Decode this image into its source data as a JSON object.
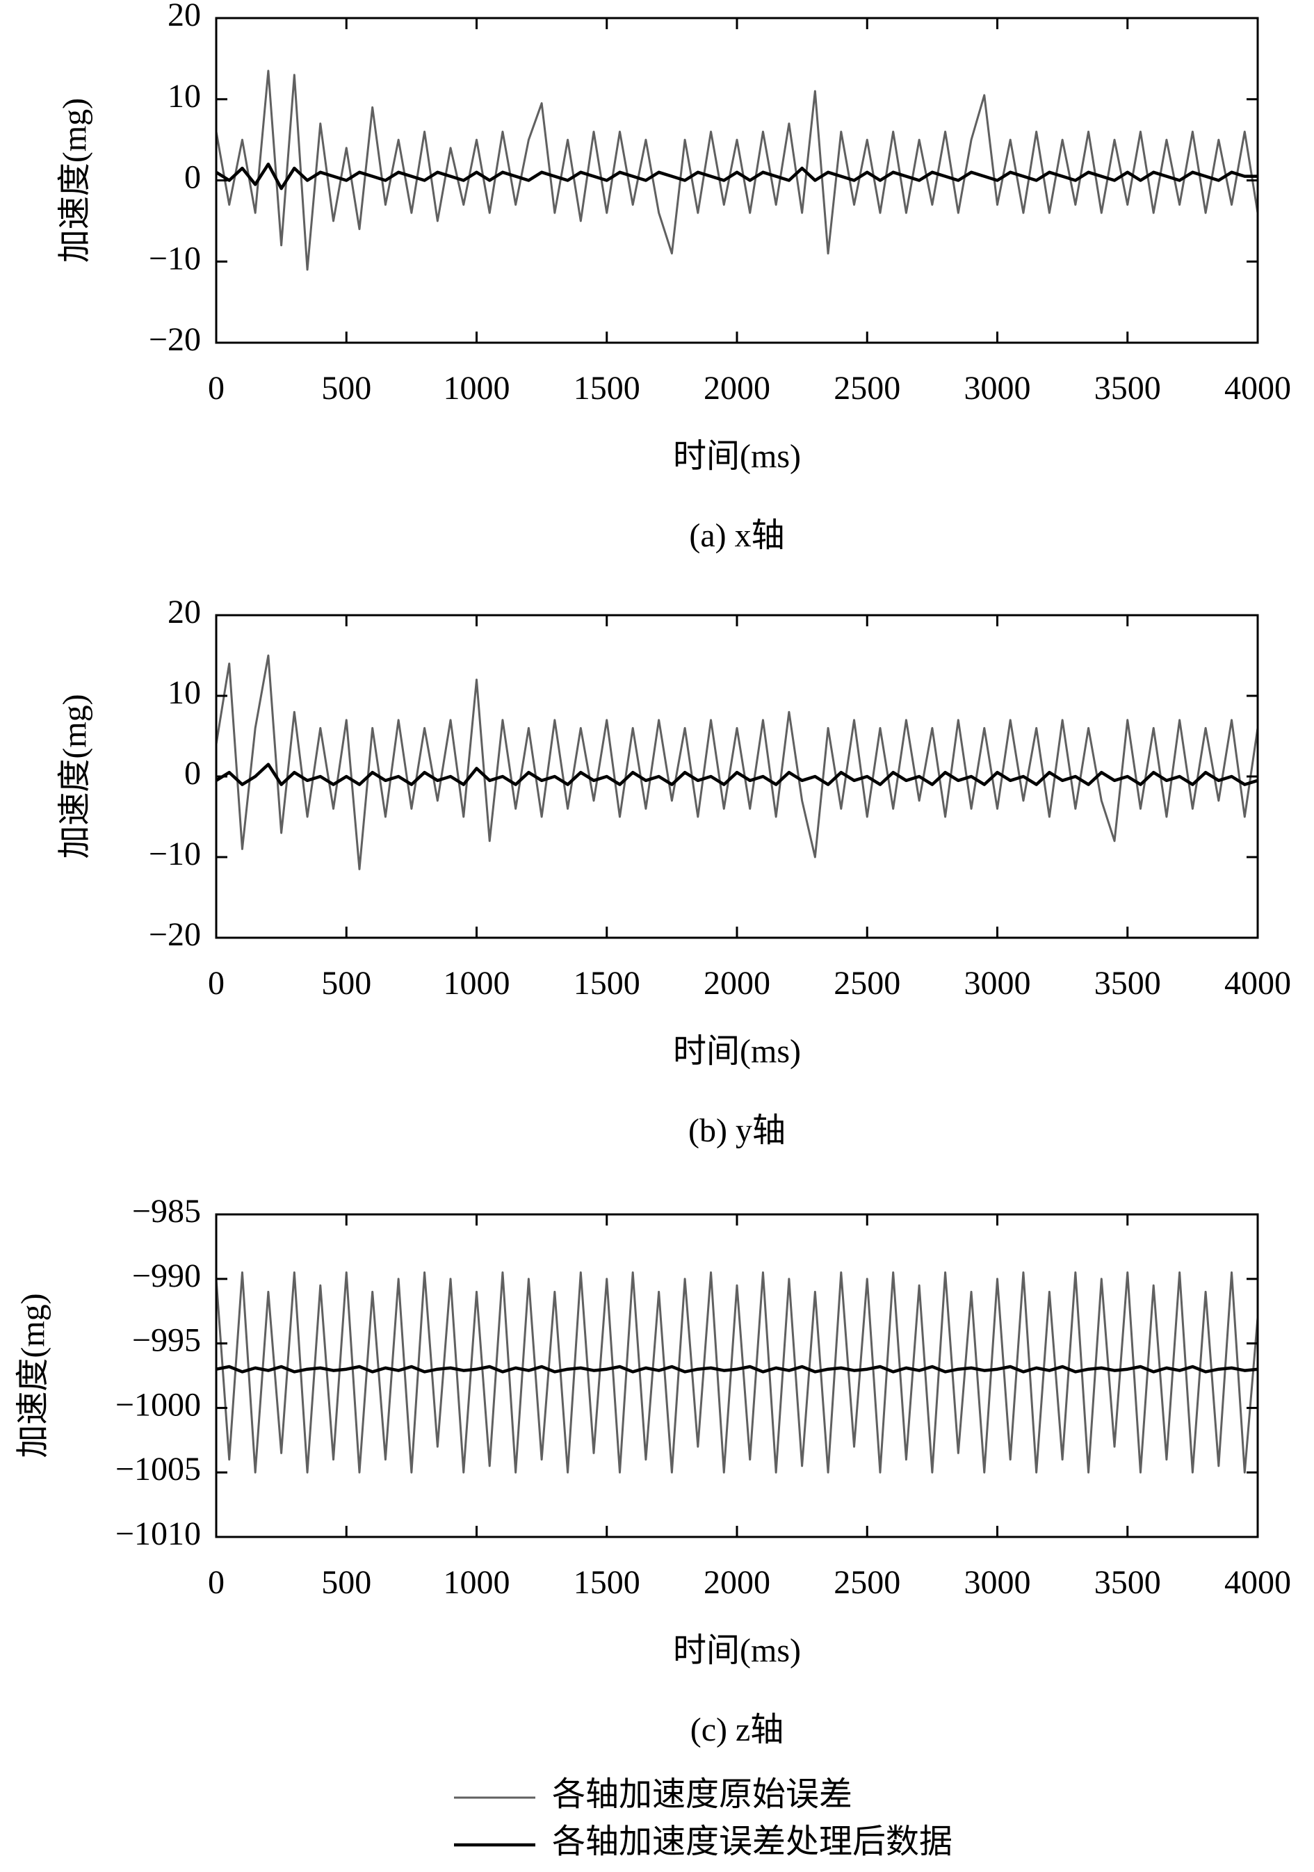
{
  "chart_data": [
    {
      "type": "line",
      "xlabel": "时间(ms)",
      "ylabel": "加速度(mg)",
      "caption": "(a) x轴",
      "xlim": [
        0,
        4000
      ],
      "xticks": [
        0,
        500,
        1000,
        1500,
        2000,
        2500,
        3000,
        3500,
        4000
      ],
      "ylim": [
        -20,
        20
      ],
      "yticks": [
        {
          "value": -20,
          "label": "−20"
        },
        {
          "value": -10,
          "label": "−10"
        },
        0,
        10,
        20
      ],
      "x": [
        0,
        50,
        100,
        150,
        200,
        250,
        300,
        350,
        400,
        450,
        500,
        550,
        600,
        650,
        700,
        750,
        800,
        850,
        900,
        950,
        1000,
        1050,
        1100,
        1150,
        1200,
        1250,
        1300,
        1350,
        1400,
        1450,
        1500,
        1550,
        1600,
        1650,
        1700,
        1750,
        1800,
        1850,
        1900,
        1950,
        2000,
        2050,
        2100,
        2150,
        2200,
        2250,
        2300,
        2350,
        2400,
        2450,
        2500,
        2550,
        2600,
        2650,
        2700,
        2750,
        2800,
        2850,
        2900,
        2950,
        3000,
        3050,
        3100,
        3150,
        3200,
        3250,
        3300,
        3350,
        3400,
        3450,
        3500,
        3550,
        3600,
        3650,
        3700,
        3750,
        3800,
        3850,
        3900,
        3950,
        4000
      ],
      "series": [
        {
          "color": "#606060",
          "values": [
            6,
            -3,
            5,
            -4,
            13.5,
            -8,
            13,
            -11,
            7,
            -5,
            4,
            -6,
            9,
            -3,
            5,
            -4,
            6,
            -5,
            4,
            -3,
            5,
            -4,
            6,
            -3,
            5,
            9.5,
            -4,
            5,
            -5,
            6,
            -4,
            6,
            -3,
            5,
            -4,
            -9,
            5,
            -4,
            6,
            -3,
            5,
            -4,
            6,
            -3,
            7,
            -4,
            11,
            -9,
            6,
            -3,
            5,
            -4,
            6,
            -4,
            5,
            -3,
            6,
            -4,
            5,
            10.5,
            -3,
            5,
            -4,
            6,
            -4,
            5,
            -3,
            6,
            -4,
            5,
            -3,
            6,
            -4,
            5,
            -3,
            6,
            -4,
            5,
            -3,
            6,
            -4
          ]
        },
        {
          "color": "#000000",
          "values": [
            1,
            0,
            1.5,
            -0.5,
            2,
            -1,
            1.5,
            0,
            1,
            0.5,
            0,
            1,
            0.5,
            0,
            1,
            0.5,
            0,
            1,
            0.5,
            0,
            1,
            0,
            1,
            0.5,
            0,
            1,
            0.5,
            0,
            1,
            0.5,
            0,
            1,
            0.5,
            0,
            1,
            0.5,
            0,
            1,
            0.5,
            0,
            1,
            0,
            1,
            0.5,
            0,
            1.5,
            0,
            1,
            0.5,
            0,
            1,
            0,
            1,
            0.5,
            0,
            1,
            0.5,
            0,
            1,
            0.5,
            0,
            1,
            0.5,
            0,
            1,
            0.5,
            0,
            1,
            0.5,
            0,
            1,
            0,
            1,
            0.5,
            0,
            1,
            0.5,
            0,
            1,
            0.5,
            0.5
          ]
        }
      ]
    },
    {
      "type": "line",
      "xlabel": "时间(ms)",
      "ylabel": "加速度(mg)",
      "caption": "(b) y轴",
      "xlim": [
        0,
        4000
      ],
      "xticks": [
        0,
        500,
        1000,
        1500,
        2000,
        2500,
        3000,
        3500,
        4000
      ],
      "ylim": [
        -20,
        20
      ],
      "yticks": [
        {
          "value": -20,
          "label": "−20"
        },
        {
          "value": -10,
          "label": "−10"
        },
        0,
        10,
        20
      ],
      "x": [
        0,
        50,
        100,
        150,
        200,
        250,
        300,
        350,
        400,
        450,
        500,
        550,
        600,
        650,
        700,
        750,
        800,
        850,
        900,
        950,
        1000,
        1050,
        1100,
        1150,
        1200,
        1250,
        1300,
        1350,
        1400,
        1450,
        1500,
        1550,
        1600,
        1650,
        1700,
        1750,
        1800,
        1850,
        1900,
        1950,
        2000,
        2050,
        2100,
        2150,
        2200,
        2250,
        2300,
        2350,
        2400,
        2450,
        2500,
        2550,
        2600,
        2650,
        2700,
        2750,
        2800,
        2850,
        2900,
        2950,
        3000,
        3050,
        3100,
        3150,
        3200,
        3250,
        3300,
        3350,
        3400,
        3450,
        3500,
        3550,
        3600,
        3650,
        3700,
        3750,
        3800,
        3850,
        3900,
        3950,
        4000
      ],
      "series": [
        {
          "color": "#606060",
          "values": [
            4,
            14,
            -9,
            6,
            15,
            -7,
            8,
            -5,
            6,
            -4,
            7,
            -11.5,
            6,
            -5,
            7,
            -4,
            6,
            -3,
            7,
            -5,
            12,
            -8,
            7,
            -4,
            6,
            -5,
            7,
            -4,
            6,
            -3,
            7,
            -5,
            6,
            -4,
            7,
            -3,
            6,
            -5,
            7,
            -4,
            6,
            -4,
            7,
            -5,
            8,
            -3,
            -10,
            6,
            -4,
            7,
            -5,
            6,
            -4,
            7,
            -3,
            6,
            -5,
            7,
            -4,
            6,
            -4,
            7,
            -3,
            6,
            -5,
            7,
            -4,
            6,
            -3,
            -8,
            7,
            -4,
            6,
            -5,
            7,
            -4,
            6,
            -3,
            7,
            -5,
            6
          ]
        },
        {
          "color": "#000000",
          "values": [
            -0.5,
            0.5,
            -1,
            0,
            1.5,
            -1,
            0.5,
            -0.5,
            0,
            -1,
            0,
            -1,
            0.5,
            -0.5,
            0,
            -1,
            0.5,
            -0.5,
            0,
            -1,
            1,
            -0.5,
            0,
            -1,
            0.5,
            -0.5,
            0,
            -1,
            0.5,
            -0.5,
            0,
            -1,
            0.5,
            -0.5,
            0,
            -1,
            0.5,
            -0.5,
            0,
            -1,
            0.5,
            -0.5,
            0,
            -1,
            0.5,
            -0.5,
            0,
            -1,
            0.5,
            -0.5,
            0,
            -1,
            0.5,
            -0.5,
            0,
            -1,
            0.5,
            -0.5,
            0,
            -1,
            0.5,
            -0.5,
            0,
            -1,
            0.5,
            -0.5,
            0,
            -1,
            0.5,
            -0.5,
            0,
            -1,
            0.5,
            -0.5,
            0,
            -1,
            0.5,
            -0.5,
            0,
            -1,
            -0.5
          ]
        }
      ]
    },
    {
      "type": "line",
      "xlabel": "时间(ms)",
      "ylabel": "加速度(mg)",
      "caption": "(c) z轴",
      "xlim": [
        0,
        4000
      ],
      "xticks": [
        0,
        500,
        1000,
        1500,
        2000,
        2500,
        3000,
        3500,
        4000
      ],
      "ylim": [
        -1010,
        -985
      ],
      "yticks": [
        {
          "value": -1010,
          "label": "−1010"
        },
        {
          "value": -1005,
          "label": "−1005"
        },
        {
          "value": -1000,
          "label": "−1000"
        },
        {
          "value": -995,
          "label": "−995"
        },
        {
          "value": -990,
          "label": "−990"
        },
        {
          "value": -985,
          "label": "−985"
        }
      ],
      "x": [
        0,
        50,
        100,
        150,
        200,
        250,
        300,
        350,
        400,
        450,
        500,
        550,
        600,
        650,
        700,
        750,
        800,
        850,
        900,
        950,
        1000,
        1050,
        1100,
        1150,
        1200,
        1250,
        1300,
        1350,
        1400,
        1450,
        1500,
        1550,
        1600,
        1650,
        1700,
        1750,
        1800,
        1850,
        1900,
        1950,
        2000,
        2050,
        2100,
        2150,
        2200,
        2250,
        2300,
        2350,
        2400,
        2450,
        2500,
        2550,
        2600,
        2650,
        2700,
        2750,
        2800,
        2850,
        2900,
        2950,
        3000,
        3050,
        3100,
        3150,
        3200,
        3250,
        3300,
        3350,
        3400,
        3450,
        3500,
        3550,
        3600,
        3650,
        3700,
        3750,
        3800,
        3850,
        3900,
        3950,
        4000
      ],
      "series": [
        {
          "name": "各轴加速度原始误差",
          "color": "#606060",
          "values": [
            -990,
            -1004,
            -989.5,
            -1005,
            -991,
            -1003.5,
            -989.5,
            -1005,
            -990.5,
            -1004,
            -989.5,
            -1005,
            -991,
            -1004,
            -990,
            -1005,
            -989.5,
            -1003,
            -990,
            -1005,
            -991,
            -1004.5,
            -989.5,
            -1005,
            -990,
            -1004,
            -991,
            -1005,
            -989.5,
            -1003.5,
            -990,
            -1005,
            -989.5,
            -1004,
            -991,
            -1005,
            -990,
            -1003,
            -989.5,
            -1005,
            -990.5,
            -1004,
            -989.5,
            -1005,
            -990,
            -1004.5,
            -991,
            -1005,
            -989.5,
            -1003,
            -990,
            -1005,
            -989.5,
            -1004,
            -990.5,
            -1005,
            -989.5,
            -1003.5,
            -991,
            -1005,
            -990,
            -1004,
            -989.5,
            -1005,
            -991,
            -1004,
            -989.5,
            -1005,
            -990,
            -1003,
            -989.5,
            -1005,
            -990.5,
            -1004,
            -989.5,
            -1005,
            -991,
            -1004.5,
            -989.5,
            -1005,
            -993
          ]
        },
        {
          "name": "各轴加速度误差处理后数据",
          "color": "#000000",
          "values": [
            -997,
            -996.8,
            -997.2,
            -996.9,
            -997.1,
            -996.8,
            -997.2,
            -997,
            -996.9,
            -997.1,
            -997,
            -996.8,
            -997.2,
            -996.9,
            -997.1,
            -996.8,
            -997.2,
            -997,
            -996.9,
            -997.1,
            -997,
            -996.8,
            -997.2,
            -996.9,
            -997.1,
            -996.8,
            -997.2,
            -997,
            -996.9,
            -997.1,
            -997,
            -996.8,
            -997.2,
            -996.9,
            -997.1,
            -996.8,
            -997.2,
            -997,
            -996.9,
            -997.1,
            -997,
            -996.8,
            -997.2,
            -996.9,
            -997.1,
            -996.8,
            -997.2,
            -997,
            -996.9,
            -997.1,
            -997,
            -996.8,
            -997.2,
            -996.9,
            -997.1,
            -996.8,
            -997.2,
            -997,
            -996.9,
            -997.1,
            -997,
            -996.8,
            -997.2,
            -996.9,
            -997.1,
            -996.8,
            -997.2,
            -997,
            -996.9,
            -997.1,
            -997,
            -996.8,
            -997.2,
            -996.9,
            -997.1,
            -996.8,
            -997.2,
            -997,
            -996.9,
            -997.1,
            -997
          ]
        }
      ]
    }
  ]
}
